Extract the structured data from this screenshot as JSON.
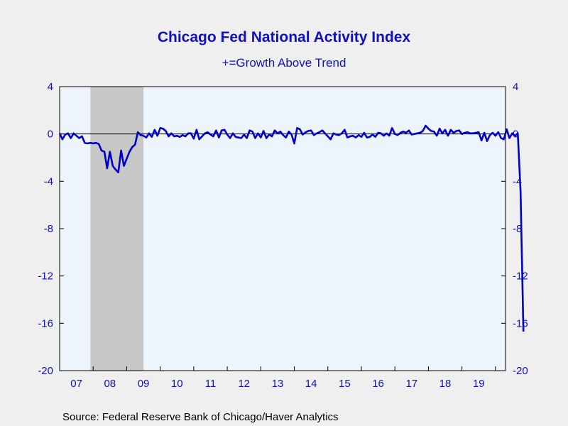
{
  "chart_data": {
    "type": "line",
    "title": "Chicago Fed National Activity Index",
    "subtitle": "+=Growth Above Trend",
    "source": "Source:  Federal Reserve Bank of Chicago/Haver Analytics",
    "ylim": [
      -20,
      4
    ],
    "yticks": [
      4,
      0,
      -4,
      -8,
      -12,
      -16,
      -20
    ],
    "yticks_right": [
      "4",
      "0",
      "-4",
      "-8",
      "-12",
      "-16",
      "-20"
    ],
    "yticks_left": [
      "4",
      "0",
      "-4",
      "-8",
      "-12",
      "-16",
      "-20"
    ],
    "x_start": "2007-01",
    "xlim_years": [
      2007,
      2020.3
    ],
    "xtick_labels": [
      "07",
      "08",
      "09",
      "10",
      "11",
      "12",
      "13",
      "14",
      "15",
      "16",
      "17",
      "18",
      "19"
    ],
    "recession": {
      "start": "2007-12",
      "end": "2009-06"
    },
    "grid": false,
    "colors": {
      "line": "#0000c8",
      "text": "#1010c0",
      "plot_bg": "#eef4fc",
      "recession": "#c8c8c8",
      "page_bg": "#efefef"
    },
    "series": [
      {
        "name": "",
        "values": [
          0.05,
          -0.45,
          -0.05,
          0.05,
          -0.35,
          0.05,
          -0.15,
          -0.35,
          -0.2,
          -0.75,
          -0.8,
          -0.75,
          -0.8,
          -0.75,
          -0.85,
          -1.4,
          -1.5,
          -2.9,
          -1.5,
          -2.7,
          -3.0,
          -3.25,
          -1.4,
          -2.7,
          -2.1,
          -1.5,
          -1.1,
          -0.9,
          0.15,
          -0.1,
          -0.15,
          -0.3,
          0.05,
          -0.25,
          0.35,
          -0.15,
          0.5,
          0.45,
          0.25,
          -0.2,
          0.05,
          -0.2,
          -0.15,
          -0.25,
          -0.1,
          -0.2,
          0.05,
          0.05,
          -0.4,
          0.35,
          -0.45,
          -0.2,
          0.05,
          0.15,
          -0.05,
          -0.2,
          0.3,
          -0.3,
          0.3,
          0.35,
          -0.05,
          -0.35,
          0.05,
          -0.25,
          -0.3,
          -0.35,
          -0.05,
          -0.35,
          0.3,
          0.2,
          -0.35,
          0.05,
          -0.3,
          0.25,
          -0.35,
          -0.05,
          -0.2,
          0.3,
          0.05,
          0.2,
          -0.1,
          -0.3,
          0.2,
          -0.05,
          -0.8,
          0.5,
          0.4,
          -0.05,
          0.15,
          0.25,
          0.3,
          -0.1,
          0.05,
          0.15,
          0.3,
          0.05,
          -0.2,
          -0.45,
          0.05,
          -0.05,
          -0.1,
          0.05,
          0.35,
          -0.3,
          -0.2,
          -0.15,
          -0.3,
          -0.1,
          -0.25,
          0.1,
          -0.3,
          -0.25,
          -0.05,
          -0.25,
          0.1,
          0.05,
          -0.15,
          0.05,
          -0.15,
          0.5,
          0.0,
          -0.1,
          0.1,
          0.2,
          0.1,
          0.3,
          -0.05,
          0.0,
          0.05,
          0.1,
          0.25,
          0.7,
          0.45,
          0.25,
          0.2,
          -0.15,
          0.45,
          0.05,
          0.35,
          -0.15,
          0.35,
          0.1,
          0.25,
          0.3,
          0.0,
          0.1,
          0.15,
          0.05,
          0.05,
          0.1,
          0.15,
          -0.55,
          0.1,
          -0.6,
          -0.1,
          0.1,
          -0.15,
          0.15,
          -0.35,
          -0.45,
          0.4,
          -0.35,
          0.05,
          -0.15,
          0.05,
          -4.9,
          -16.7
        ]
      }
    ]
  }
}
